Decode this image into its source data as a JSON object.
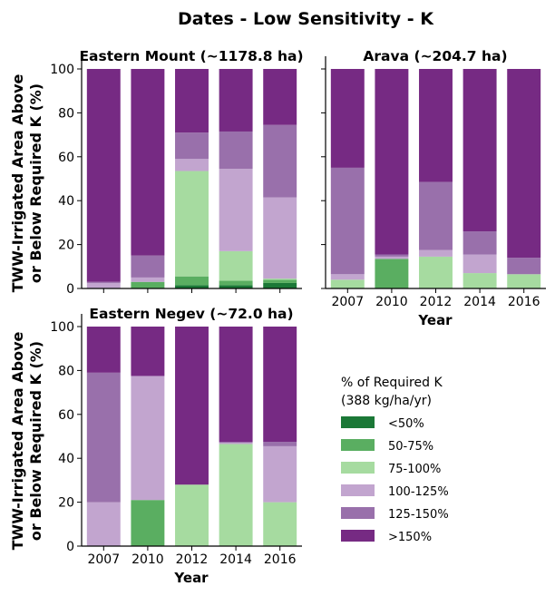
{
  "figure": {
    "title": "Dates - Low Sensitivity - K"
  },
  "colors": {
    "<50%": "#1b7837",
    "50-75%": "#5aae61",
    "75-100%": "#a6dba0",
    "100-125%": "#c2a5cf",
    "125-150%": "#9970ab",
    ">150%": "#762a83"
  },
  "legend": {
    "title_line1": "% of Required K",
    "title_line2": "(388 kg/ha/yr)",
    "items": [
      "<50%",
      "50-75%",
      "75-100%",
      "100-125%",
      "125-150%",
      ">150%"
    ]
  },
  "chart_data": [
    {
      "type": "bar",
      "stacked": true,
      "title": "Eastern Mount (~1178.8 ha)",
      "ylabel_line1": "TWW-Irrigated Area Above",
      "ylabel_line2": "or Below Required K (%)",
      "xlabel": "",
      "categories": [
        "2007",
        "2010",
        "2012",
        "2014",
        "2016"
      ],
      "ylim": [
        0,
        100
      ],
      "yticks": [
        0,
        20,
        40,
        60,
        80,
        100
      ],
      "series": [
        {
          "name": "<50%",
          "values": [
            0,
            0,
            1.5,
            1.5,
            2.5
          ]
        },
        {
          "name": "50-75%",
          "values": [
            0,
            3,
            4,
            2,
            1.5
          ]
        },
        {
          "name": "75-100%",
          "values": [
            0,
            0,
            48,
            13.5,
            0.5
          ]
        },
        {
          "name": "100-125%",
          "values": [
            2.5,
            2,
            5.5,
            37.5,
            37
          ]
        },
        {
          "name": "125-150%",
          "values": [
            0.5,
            10,
            12,
            17,
            33
          ]
        },
        {
          "name": ">150%",
          "values": [
            97,
            85,
            29,
            28.5,
            25.5
          ]
        }
      ]
    },
    {
      "type": "bar",
      "stacked": true,
      "title": "Arava (~204.7 ha)",
      "xlabel": "Year",
      "categories": [
        "2007",
        "2010",
        "2012",
        "2014",
        "2016"
      ],
      "ylim": [
        0,
        100
      ],
      "yticks": [
        0,
        20,
        40,
        60,
        80,
        100
      ],
      "series": [
        {
          "name": "<50%",
          "values": [
            0,
            0,
            0,
            0,
            0
          ]
        },
        {
          "name": "50-75%",
          "values": [
            0,
            13.5,
            0,
            0,
            0
          ]
        },
        {
          "name": "75-100%",
          "values": [
            4,
            0,
            14.5,
            7,
            6.5
          ]
        },
        {
          "name": "100-125%",
          "values": [
            2.5,
            1,
            3,
            8.5,
            0
          ]
        },
        {
          "name": "125-150%",
          "values": [
            48.5,
            1,
            31,
            10.5,
            7.5
          ]
        },
        {
          "name": ">150%",
          "values": [
            45,
            84.5,
            51.5,
            74,
            86
          ]
        }
      ]
    },
    {
      "type": "bar",
      "stacked": true,
      "title": "Eastern Negev (~72.0 ha)",
      "ylabel_line1": "TWW-Irrigated Area Above",
      "ylabel_line2": "or Below Required K (%)",
      "xlabel": "Year",
      "categories": [
        "2007",
        "2010",
        "2012",
        "2014",
        "2016"
      ],
      "ylim": [
        0,
        100
      ],
      "yticks": [
        0,
        20,
        40,
        60,
        80,
        100
      ],
      "series": [
        {
          "name": "<50%",
          "values": [
            0,
            0,
            0,
            0,
            0
          ]
        },
        {
          "name": "50-75%",
          "values": [
            0,
            21,
            0,
            0,
            0
          ]
        },
        {
          "name": "75-100%",
          "values": [
            0,
            0,
            28,
            46.5,
            20
          ]
        },
        {
          "name": "100-125%",
          "values": [
            20,
            56.5,
            0,
            0.5,
            25.5
          ]
        },
        {
          "name": "125-150%",
          "values": [
            59,
            0,
            0,
            0.5,
            2
          ]
        },
        {
          "name": ">150%",
          "values": [
            21,
            22.5,
            72,
            52.5,
            52.5
          ]
        }
      ]
    }
  ]
}
